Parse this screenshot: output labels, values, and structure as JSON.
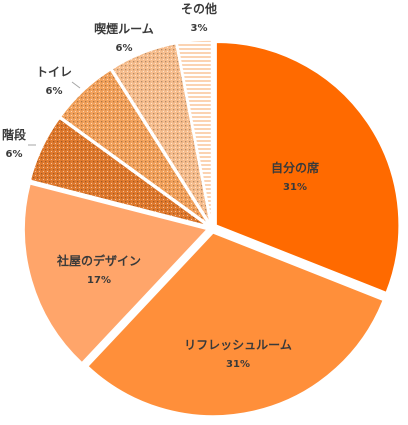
{
  "chart_data": {
    "type": "pie",
    "title": "",
    "value_unit": "%",
    "start_angle_deg": 0,
    "direction": "clockwise",
    "slices": [
      {
        "key": "seat",
        "label": "自分の席",
        "value": 31,
        "color": "#FF6A00",
        "pattern": "solid",
        "text_color": "#3a3a3a",
        "label_inside": true,
        "exploded": true
      },
      {
        "key": "refresh",
        "label": "リフレッシュルーム",
        "value": 31,
        "color": "#FF8F3A",
        "pattern": "solid",
        "text_color": "#3a3a3a",
        "label_inside": true,
        "exploded": true
      },
      {
        "key": "design",
        "label": "社屋のデザイン",
        "value": 17,
        "color": "#FFA56A",
        "pattern": "solid",
        "text_color": "#3a3a3a",
        "label_inside": true,
        "exploded": true
      },
      {
        "key": "stairs",
        "label": "階段",
        "value": 6,
        "color": "#E07A2E",
        "pattern": "dots",
        "text_color": "#3a3a3a",
        "label_inside": false,
        "exploded": true
      },
      {
        "key": "toilet",
        "label": "トイレ",
        "value": 6,
        "color": "#F3A25C",
        "pattern": "dots",
        "text_color": "#3a3a3a",
        "label_inside": false,
        "exploded": true
      },
      {
        "key": "smoking",
        "label": "喫煙ルーム",
        "value": 6,
        "color": "#F7BE8E",
        "pattern": "dots",
        "text_color": "#3a3a3a",
        "label_inside": false,
        "exploded": true
      },
      {
        "key": "other",
        "label": "その他",
        "value": 3,
        "color": "#FBD3B2",
        "pattern": "stripes",
        "text_color": "#3a3a3a",
        "label_inside": false,
        "exploded": true
      }
    ]
  }
}
